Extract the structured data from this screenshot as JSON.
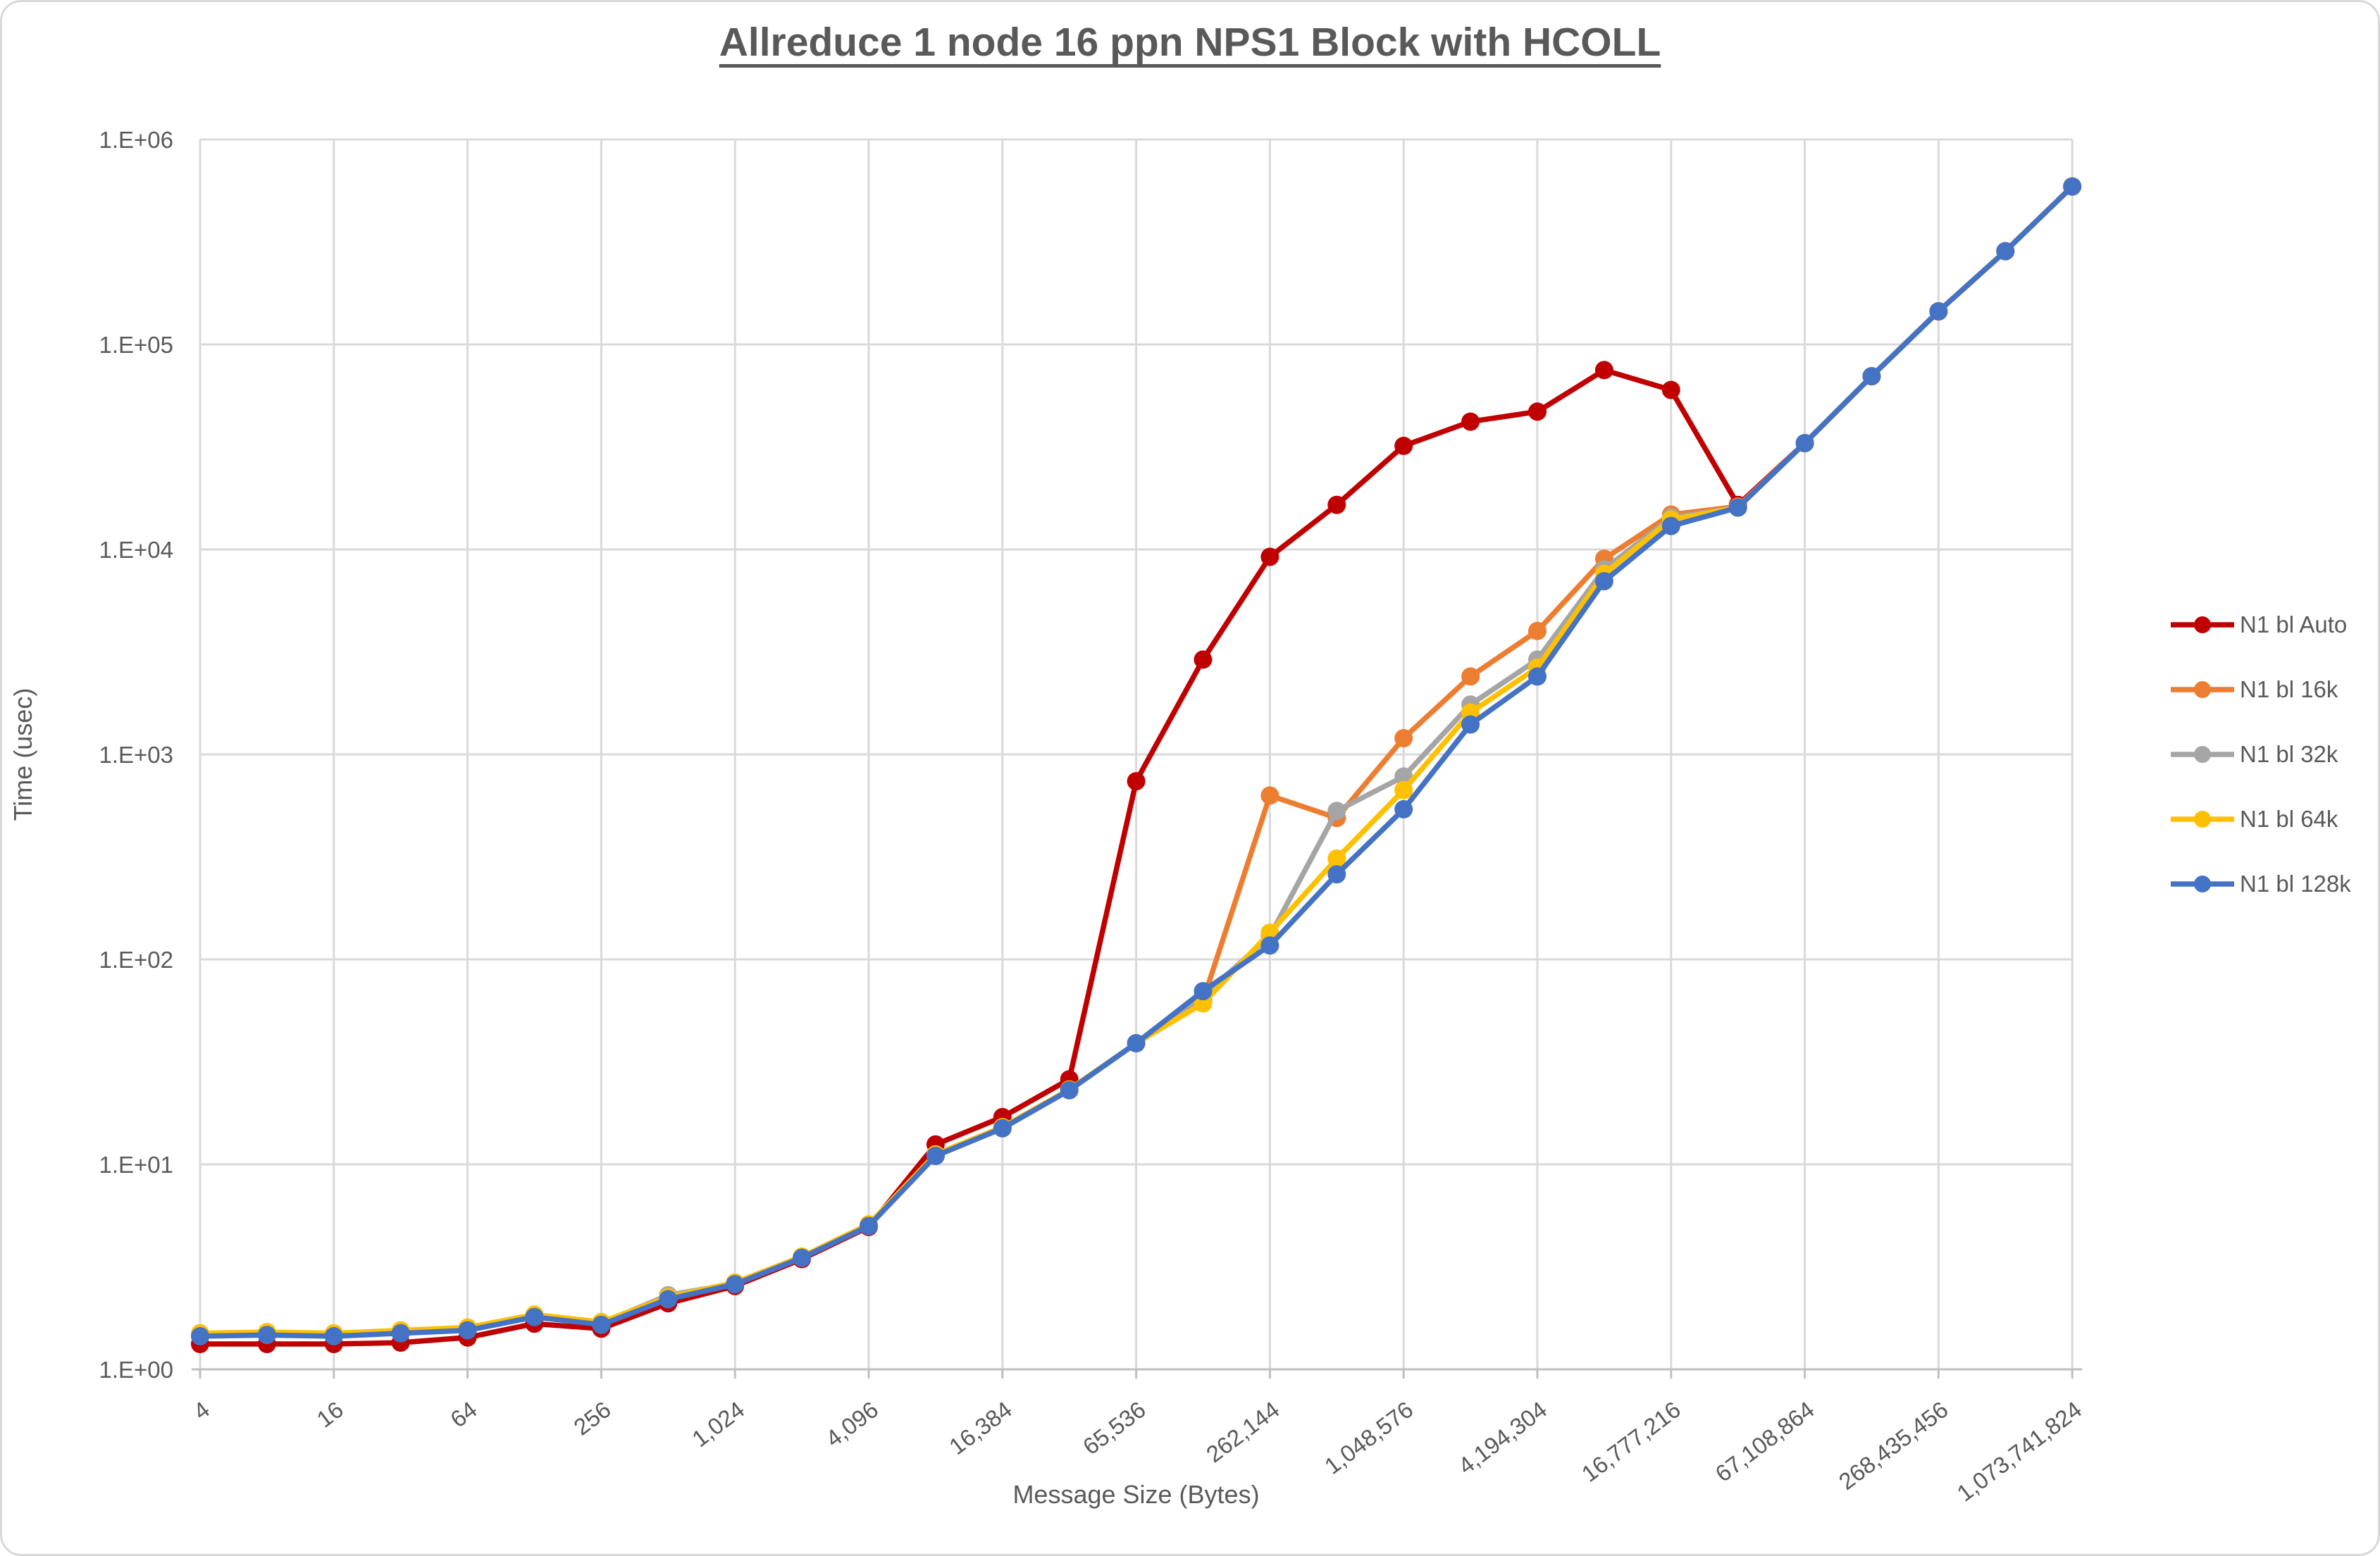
{
  "title": "Allreduce 1 node 16 ppn NPS1 Block with HCOLL",
  "colors": {
    "background": "#ffffff",
    "gridline": "#d9d9d9",
    "axis_line": "#bfbfbf",
    "text": "#595959",
    "series_auto": "#c00000",
    "series_16k": "#ed7d31",
    "series_32k": "#a5a5a5",
    "series_64k": "#ffc000",
    "series_128k": "#4472c4"
  },
  "chart_data": {
    "type": "line",
    "title": "Allreduce 1 node 16 ppn NPS1 Block with HCOLL",
    "xlabel": "Message Size (Bytes)",
    "ylabel": "Time (usec)",
    "x_scale": "log2",
    "y_scale": "log10",
    "xlim": [
      4,
      1073741824
    ],
    "ylim": [
      1,
      1000000
    ],
    "grid": true,
    "legend_position": "right",
    "y_tick_labels": [
      "1.E+00",
      "1.E+01",
      "1.E+02",
      "1.E+03",
      "1.E+04",
      "1.E+05",
      "1.E+06"
    ],
    "x_tick_labels": [
      "4",
      "16",
      "64",
      "256",
      "1,024",
      "4,096",
      "16,384",
      "65,536",
      "262,144",
      "1,048,576",
      "4,194,304",
      "16,777,216",
      "67,108,864",
      "268,435,456",
      "1,073,741,824"
    ],
    "x": [
      4,
      8,
      16,
      32,
      64,
      128,
      256,
      512,
      1024,
      2048,
      4096,
      8192,
      16384,
      32768,
      65536,
      131072,
      262144,
      524288,
      1048576,
      2097152,
      4194304,
      8388608,
      16777216,
      33554432,
      67108864,
      134217728,
      268435456,
      536870912,
      1073741824
    ],
    "series": [
      {
        "name": "N1 bl Auto",
        "color": "#c00000",
        "values": [
          1.33,
          1.33,
          1.33,
          1.35,
          1.43,
          1.67,
          1.58,
          2.1,
          2.55,
          3.45,
          4.95,
          12.5,
          17,
          26,
          740,
          2900,
          9200,
          16500,
          32000,
          42000,
          47000,
          75000,
          60000,
          16500,
          33000,
          70000,
          145000,
          285000,
          590000
        ]
      },
      {
        "name": "N1 bl 16k",
        "color": "#ed7d31",
        "values": [
          1.47,
          1.49,
          1.47,
          1.5,
          1.56,
          1.8,
          1.66,
          2.2,
          2.6,
          3.5,
          5.0,
          11,
          15,
          23,
          39,
          63,
          630,
          490,
          1200,
          2400,
          4000,
          9000,
          14800,
          16200,
          33000,
          70000,
          145000,
          285000,
          590000
        ]
      },
      {
        "name": "N1 bl 32k",
        "color": "#a5a5a5",
        "values": [
          1.48,
          1.5,
          1.48,
          1.52,
          1.58,
          1.82,
          1.68,
          2.3,
          2.62,
          3.52,
          5.05,
          11.1,
          15.1,
          23.1,
          39,
          66,
          130,
          530,
          780,
          1750,
          2900,
          8000,
          14300,
          16000,
          33000,
          70000,
          145000,
          285000,
          590000
        ]
      },
      {
        "name": "N1 bl 64k",
        "color": "#ffc000",
        "values": [
          1.5,
          1.52,
          1.5,
          1.55,
          1.6,
          1.85,
          1.7,
          2.25,
          2.65,
          3.55,
          5.1,
          11.2,
          15.2,
          23.2,
          39,
          61,
          135,
          310,
          670,
          1600,
          2650,
          7600,
          14000,
          16000,
          33000,
          70000,
          145000,
          285000,
          590000
        ]
      },
      {
        "name": "N1 bl 128k",
        "color": "#4472c4",
        "values": [
          1.45,
          1.47,
          1.45,
          1.5,
          1.55,
          1.8,
          1.65,
          2.2,
          2.6,
          3.5,
          5.0,
          11,
          15,
          23,
          39,
          70,
          117,
          260,
          540,
          1400,
          2400,
          7000,
          13000,
          16000,
          33000,
          70000,
          145000,
          285000,
          590000
        ]
      }
    ]
  }
}
